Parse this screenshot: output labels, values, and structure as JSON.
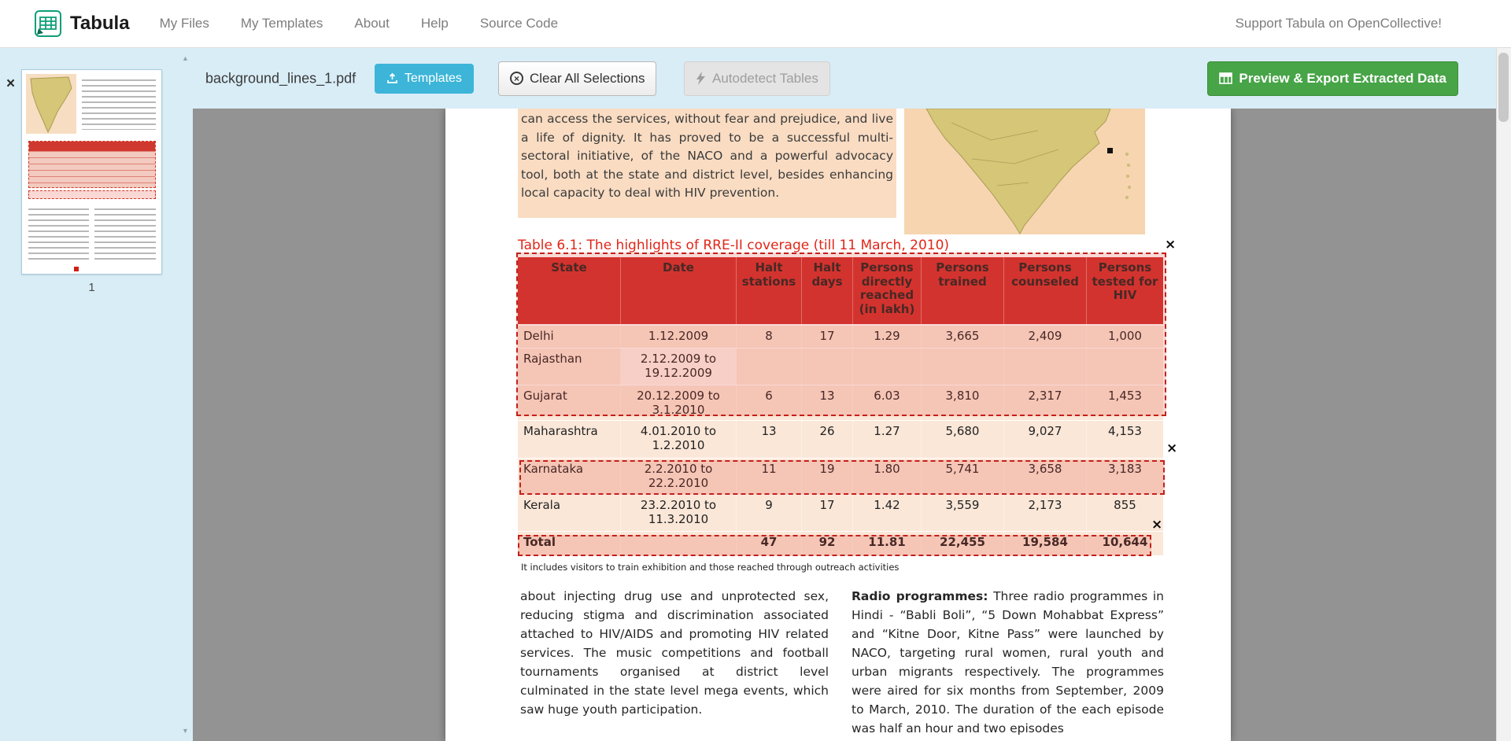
{
  "navbar": {
    "brand": "Tabula",
    "items": [
      {
        "label": "My Files"
      },
      {
        "label": "My Templates"
      },
      {
        "label": "About"
      },
      {
        "label": "Help"
      },
      {
        "label": "Source Code"
      }
    ],
    "support_link": "Support Tabula on OpenCollective!"
  },
  "sidebar": {
    "close_icon": "×",
    "page_number": "1",
    "scroll_up_icon": "▲",
    "scroll_down_icon": "▼"
  },
  "toolbar": {
    "filename": "background_lines_1.pdf",
    "templates_button": "Templates",
    "clear_button": "Clear All Selections",
    "clear_icon": "×",
    "autodetect_button": "Autodetect Tables",
    "export_button": "Preview & Export Extracted Data"
  },
  "pdf": {
    "intro_paragraph": "can access the services, without fear and prejudice, and live a life of dignity. It has proved to be a successful multi-sectoral initiative, of the NACO and a powerful advocacy tool, both at the state and district level, besides enhancing local capacity to deal with HIV prevention.",
    "table_title": "Table 6.1: The highlights of RRE-II coverage (till 11 March, 2010)",
    "table": {
      "headers": [
        "State",
        "Date",
        "Halt stations",
        "Halt days",
        "Persons directly reached (in lakh)",
        "Persons trained",
        "Persons counseled",
        "Persons tested for HIV"
      ],
      "rows": [
        [
          "Delhi",
          "1.12.2009",
          "8",
          "17",
          "1.29",
          "3,665",
          "2,409",
          "1,000"
        ],
        [
          "Rajasthan",
          "2.12.2009 to 19.12.2009",
          "",
          "",
          "",
          "",
          "",
          ""
        ],
        [
          "Gujarat",
          "20.12.2009 to 3.1.2010",
          "6",
          "13",
          "6.03",
          "3,810",
          "2,317",
          "1,453"
        ],
        [
          "Maharashtra",
          "4.01.2010 to 1.2.2010",
          "13",
          "26",
          "1.27",
          "5,680",
          "9,027",
          "4,153"
        ],
        [
          "Karnataka",
          "2.2.2010 to 22.2.2010",
          "11",
          "19",
          "1.80",
          "5,741",
          "3,658",
          "3,183"
        ],
        [
          "Kerala",
          "23.2.2010 to 11.3.2010",
          "9",
          "17",
          "1.42",
          "3,559",
          "2,173",
          "855"
        ],
        [
          "Total",
          "",
          "47",
          "92",
          "11.81",
          "22,455",
          "19,584",
          "10,644"
        ]
      ]
    },
    "footnote": "It includes visitors to train exhibition and those reached through outreach activities",
    "left_column": "about injecting drug use and unprotected sex, reducing stigma and discrimination associated attached to HIV/AIDS and promoting HIV related services. The music competitions and football tournaments organised at district level culminated in the state level mega events, which saw huge youth participation.",
    "right_column_lead": "Radio programmes:",
    "right_column_text": " Three radio programmes in Hindi - “Babli Boli”, “5 Down Mohabbat Express” and “Kitne Door, Kitne Pass” were launched by NACO, targeting rural women, rural youth and urban migrants respectively. The programmes were aired for six months from September, 2009 to March, 2010. The duration of the each episode was half an hour and two episodes"
  },
  "selections": {
    "close_icon": "×"
  },
  "colors": {
    "toolbar_blue": "#d9edf7",
    "templates_cyan": "#3cb5d8",
    "export_green": "#47a447",
    "selection_red": "#c2201a",
    "table_header_red": "#d0302d",
    "table_title_red": "#e02618"
  }
}
